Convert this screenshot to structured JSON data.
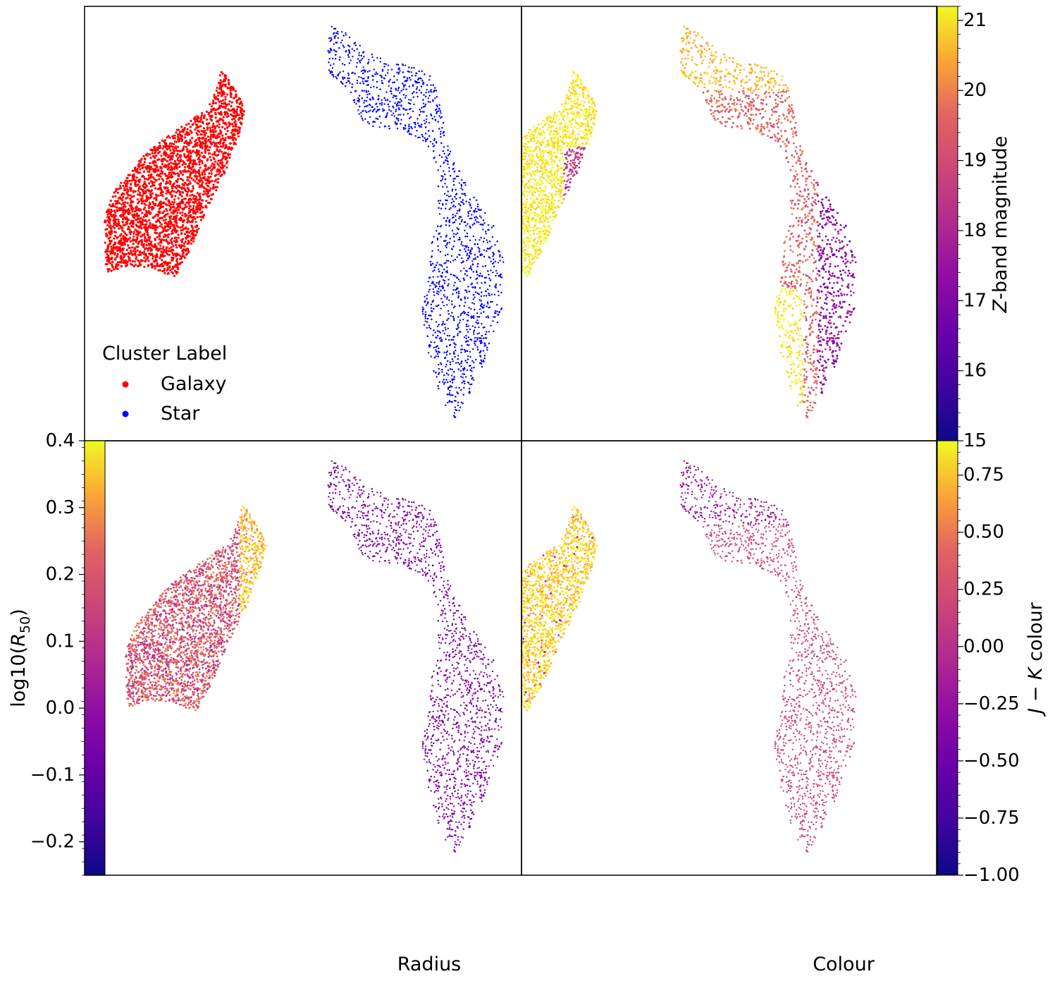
{
  "chart_data": [
    {
      "type": "scatter",
      "panel": "top-left",
      "xlabel": "",
      "ylabel": "",
      "legend": {
        "title": "Cluster Label",
        "position": "lower-left",
        "entries": [
          {
            "label": "Galaxy",
            "color": "#ff0000"
          },
          {
            "label": "Star",
            "color": "#0000ff"
          }
        ]
      },
      "series": [
        {
          "name": "Galaxy",
          "color": "#ff0000",
          "region": "galaxy"
        },
        {
          "name": "Star",
          "color": "#0000ff",
          "region": "star"
        }
      ]
    },
    {
      "type": "scatter",
      "panel": "top-right",
      "xlabel": "",
      "ylabel": "",
      "colormap": "plasma",
      "colorbar": {
        "label": "Z-band magnitude",
        "label_var": "Z",
        "label_rest": "-band magnitude",
        "range": [
          15,
          21.2
        ],
        "ticks": [
          "21",
          "20",
          "19",
          "18",
          "17",
          "16",
          "15"
        ],
        "tick_values": [
          21,
          20,
          19,
          18,
          17,
          16,
          15
        ]
      }
    },
    {
      "type": "scatter",
      "panel": "bottom-left",
      "xlabel": "Radius",
      "ylabel": "log10(R50)",
      "ylabel_parts": {
        "pre": "log10(",
        "var": "R",
        "sub": "50",
        "post": ")"
      },
      "colormap": "plasma",
      "colorbar": {
        "position": "left",
        "range": [
          -0.25,
          0.4
        ],
        "ticks": [
          "0.4",
          "0.3",
          "0.2",
          "0.1",
          "0.0",
          "−0.1",
          "−0.2"
        ],
        "tick_values": [
          0.4,
          0.3,
          0.2,
          0.1,
          0.0,
          -0.1,
          -0.2
        ]
      }
    },
    {
      "type": "scatter",
      "panel": "bottom-right",
      "xlabel": "Colour",
      "ylabel": "",
      "colormap": "plasma",
      "colorbar": {
        "label": "J − K colour",
        "label_parts": {
          "a": "J",
          "op": " − ",
          "b": "K",
          "rest": " colour"
        },
        "range": [
          -1.0,
          0.9
        ],
        "ticks": [
          "0.75",
          "0.50",
          "0.25",
          "0.00",
          "−0.25",
          "−0.50",
          "−0.75",
          "−1.00"
        ],
        "tick_values": [
          0.75,
          0.5,
          0.25,
          0.0,
          -0.25,
          -0.5,
          -0.75,
          -1.0
        ]
      }
    }
  ]
}
